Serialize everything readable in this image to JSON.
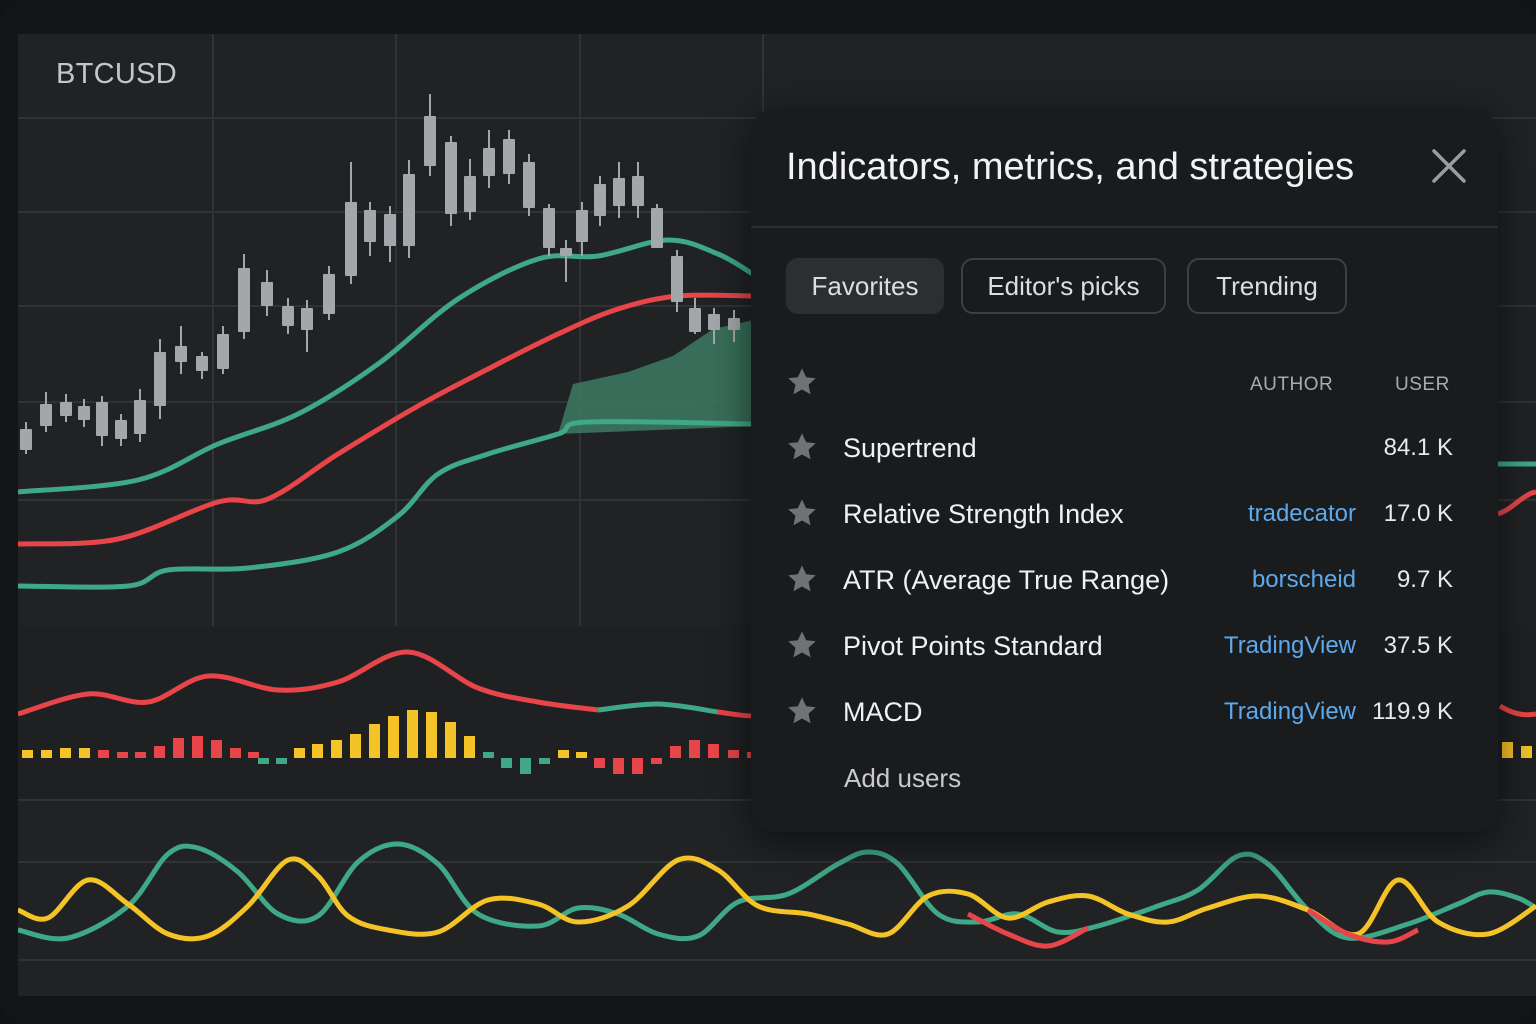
{
  "chart": {
    "symbol": "BTCUSD",
    "colors": {
      "background": "#202224",
      "grid": "#2f3236",
      "candle": "#a3a6aa",
      "green": "#3fa886",
      "red": "#e8454a",
      "yellow": "#f4c327"
    }
  },
  "dialog": {
    "title": "Indicators, metrics, and strategies",
    "close_icon": "close-icon",
    "tabs": [
      {
        "label": "Favorites",
        "active": true
      },
      {
        "label": "Editor's picks",
        "active": false
      },
      {
        "label": "Trending",
        "active": false
      }
    ],
    "columns": {
      "author": "AUTHOR",
      "user": "USER"
    },
    "rows": [
      {
        "name": "Supertrend",
        "author": "",
        "users": "84.1 K"
      },
      {
        "name": "Relative Strength Index",
        "author": "tradecator",
        "users": "17.0 K"
      },
      {
        "name": "ATR (Average True Range)",
        "author": "borscheid",
        "users": "9.7 K"
      },
      {
        "name": "Pivot Points Standard",
        "author": "TradingView",
        "users": "37.5 K"
      },
      {
        "name": "MACD",
        "author": "TradingView",
        "users": "119.9 K"
      }
    ],
    "add_users": "Add users",
    "colors": {
      "star": "#707376",
      "author_link": "#5ea9ea",
      "panel": "#1a1b1d"
    }
  }
}
